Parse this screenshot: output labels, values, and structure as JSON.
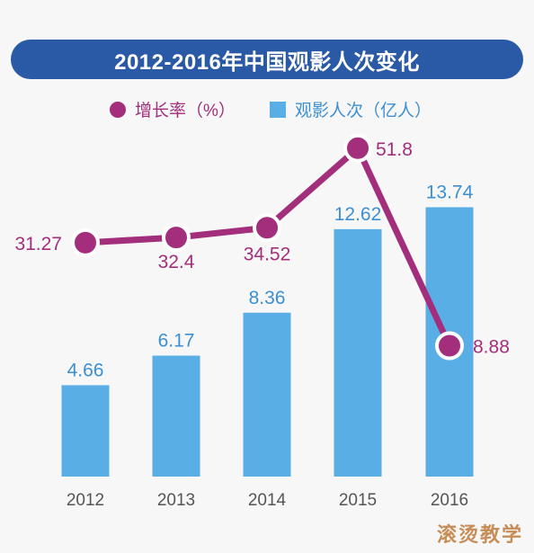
{
  "chart_data": {
    "type": "bar",
    "title": "2012-2016年中国观影人次变化",
    "categories": [
      "2012",
      "2013",
      "2014",
      "2015",
      "2016"
    ],
    "series": [
      {
        "name": "观影人次（亿人）",
        "type": "bar",
        "values": [
          4.66,
          6.17,
          8.36,
          12.62,
          13.74
        ],
        "color": "#5aaee6"
      },
      {
        "name": "增长率（%）",
        "type": "line",
        "values": [
          31.27,
          32.4,
          34.52,
          51.8,
          8.88
        ],
        "color": "#a22e7c"
      }
    ],
    "value_labels": {
      "bar": [
        "4.66",
        "6.17",
        "8.36",
        "12.62",
        "13.74"
      ],
      "line": [
        "31.27",
        "32.4",
        "34.52",
        "51.8",
        "8.88"
      ]
    },
    "legend_position": "top",
    "grid": false
  },
  "legend": {
    "rate_label": "增长率（%）",
    "volume_label": "观影人次（亿人）"
  },
  "watermark": "滚烫教学",
  "colors": {
    "title_bg": "#2a5aa6",
    "bar": "#5aaee6",
    "line": "#a22e7c",
    "bar_label": "#3c8fd2",
    "line_label": "#a22e7c",
    "axis_label": "#555555"
  }
}
